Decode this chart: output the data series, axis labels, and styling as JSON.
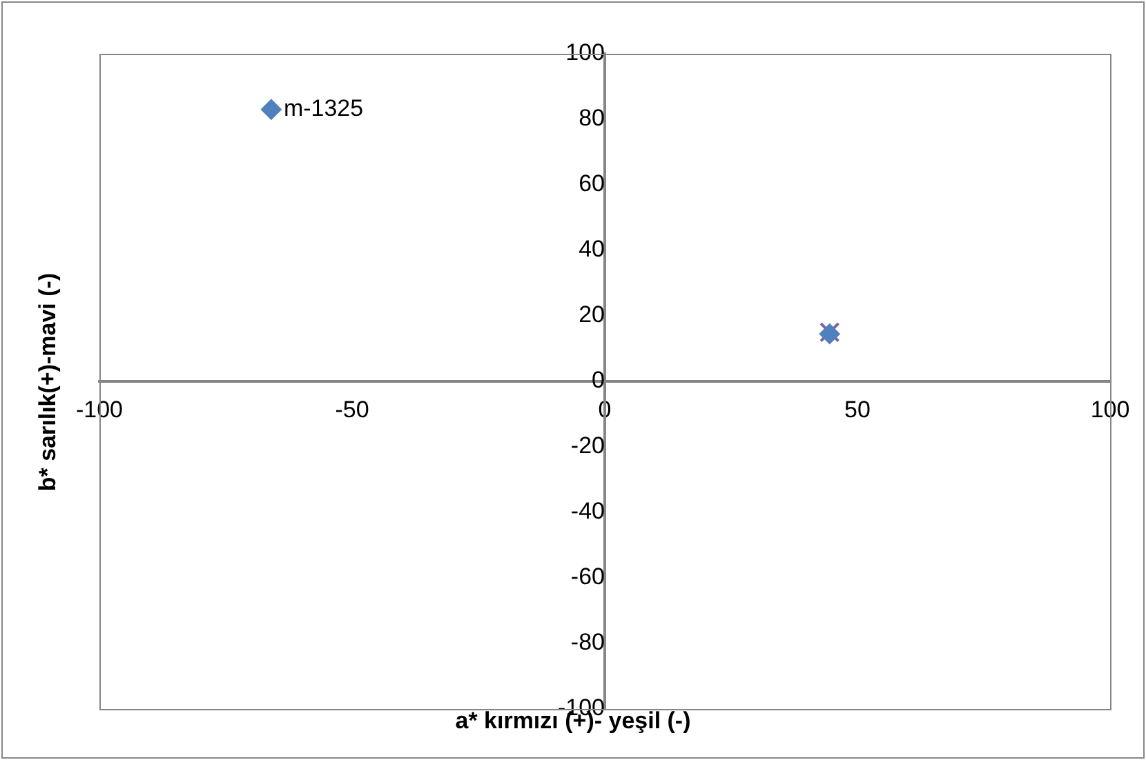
{
  "chart_data": {
    "type": "scatter",
    "xlabel": "a*  kırmızı (+)- yeşil (-)",
    "ylabel": "b*  sarılık(+)-mavi (-)",
    "x": [
      -66,
      44.5
    ],
    "series": [
      {
        "color": "#4f81bd",
        "marker": "diamond",
        "values": [
          83,
          14.5
        ]
      },
      {
        "color": "#8064a2",
        "marker": "cross",
        "values": [
          null,
          15
        ]
      }
    ],
    "annotations": [
      {
        "text": "m-1325",
        "x": -66,
        "y": 83
      }
    ],
    "xlim": [
      -100,
      100
    ],
    "xticks": [
      -100,
      -50,
      0,
      50,
      100
    ],
    "ylim": [
      -100,
      100
    ],
    "yticks": [
      -100,
      -80,
      -60,
      -40,
      -20,
      0,
      20,
      40,
      60,
      80,
      100
    ],
    "grid": false,
    "legend": false
  }
}
